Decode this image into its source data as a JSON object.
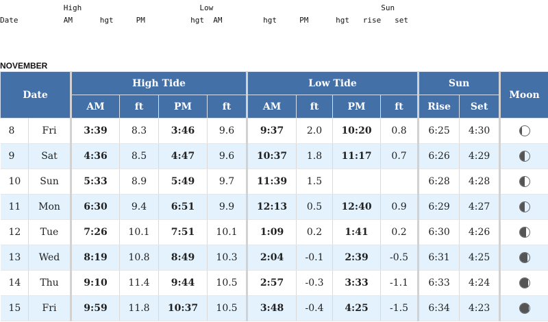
{
  "header_text": {
    "line1": "              High                          Low                                     Sun",
    "line2": "Date          AM      hgt     PM          hgt  AM         hgt     PM      hgt   rise   set"
  },
  "month": "NOVEMBER",
  "columns": {
    "date": "Date",
    "high_tide": "High Tide",
    "low_tide": "Low Tide",
    "sun": "Sun",
    "moon": "Moon",
    "am": "AM",
    "ft": "ft",
    "pm": "PM",
    "rise": "Rise",
    "set": "Set"
  },
  "rows": [
    {
      "day": "8",
      "weekday": "Fri",
      "high_am": "3:39",
      "high_am_ft": "8.3",
      "high_pm": "3:46",
      "high_pm_ft": "9.6",
      "low_am": "9:37",
      "low_am_ft": "2.0",
      "low_pm": "10:20",
      "low_pm_ft": "0.8",
      "sunrise": "6:25",
      "sunset": "4:30",
      "moon_icon": "moon-waning-gibbous-icon",
      "moon_lit": 0.75
    },
    {
      "day": "9",
      "weekday": "Sat",
      "high_am": "4:36",
      "high_am_ft": "8.5",
      "high_pm": "4:47",
      "high_pm_ft": "9.6",
      "low_am": "10:37",
      "low_am_ft": "1.8",
      "low_pm": "11:17",
      "low_pm_ft": "0.7",
      "sunrise": "6:26",
      "sunset": "4:29",
      "moon_icon": "moon-half-icon",
      "moon_lit": 0.5
    },
    {
      "day": "10",
      "weekday": "Sun",
      "high_am": "5:33",
      "high_am_ft": "8.9",
      "high_pm": "5:49",
      "high_pm_ft": "9.7",
      "low_am": "11:39",
      "low_am_ft": "1.5",
      "low_pm": "",
      "low_pm_ft": "",
      "sunrise": "6:28",
      "sunset": "4:28",
      "moon_icon": "moon-half-icon",
      "moon_lit": 0.5
    },
    {
      "day": "11",
      "weekday": "Mon",
      "high_am": "6:30",
      "high_am_ft": "9.4",
      "high_pm": "6:51",
      "high_pm_ft": "9.9",
      "low_am": "12:13",
      "low_am_ft": "0.5",
      "low_pm": "12:40",
      "low_pm_ft": "0.9",
      "sunrise": "6:29",
      "sunset": "4:27",
      "moon_icon": "moon-half-icon",
      "moon_lit": 0.45
    },
    {
      "day": "12",
      "weekday": "Tue",
      "high_am": "7:26",
      "high_am_ft": "10.1",
      "high_pm": "7:51",
      "high_pm_ft": "10.1",
      "low_am": "1:09",
      "low_am_ft": "0.2",
      "low_pm": "1:41",
      "low_pm_ft": "0.2",
      "sunrise": "6:30",
      "sunset": "4:26",
      "moon_icon": "moon-crescent-icon",
      "moon_lit": 0.3
    },
    {
      "day": "13",
      "weekday": "Wed",
      "high_am": "8:19",
      "high_am_ft": "10.8",
      "high_pm": "8:49",
      "high_pm_ft": "10.3",
      "low_am": "2:04",
      "low_am_ft": "-0.1",
      "low_pm": "2:39",
      "low_pm_ft": "-0.5",
      "sunrise": "6:31",
      "sunset": "4:25",
      "moon_icon": "moon-crescent-icon",
      "moon_lit": 0.2
    },
    {
      "day": "14",
      "weekday": "Thu",
      "high_am": "9:10",
      "high_am_ft": "11.4",
      "high_pm": "9:44",
      "high_pm_ft": "10.5",
      "low_am": "2:57",
      "low_am_ft": "-0.3",
      "low_pm": "3:33",
      "low_pm_ft": "-1.1",
      "sunrise": "6:33",
      "sunset": "4:24",
      "moon_icon": "moon-crescent-icon",
      "moon_lit": 0.12
    },
    {
      "day": "15",
      "weekday": "Fri",
      "high_am": "9:59",
      "high_am_ft": "11.8",
      "high_pm": "10:37",
      "high_pm_ft": "10.5",
      "low_am": "3:48",
      "low_am_ft": "-0.4",
      "low_pm": "4:25",
      "low_pm_ft": "-1.5",
      "sunrise": "6:34",
      "sunset": "4:23",
      "moon_icon": "moon-new-icon",
      "moon_lit": 0.05
    }
  ]
}
